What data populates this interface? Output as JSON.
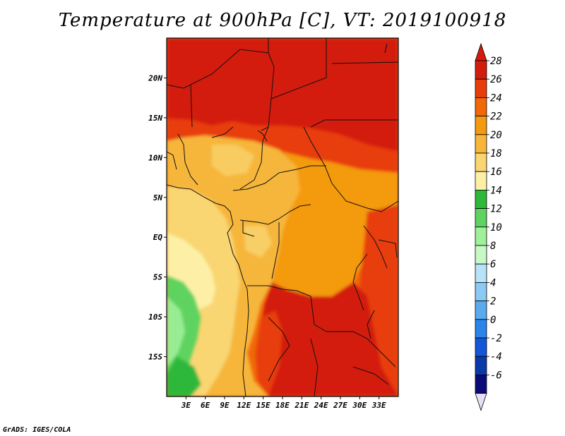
{
  "title": "Temperature at 900hPa [C], VT: 2019100918",
  "footer": "GrADS: IGES/COLA",
  "map": {
    "lon_range": [
      0,
      36
    ],
    "lat_range": [
      -20,
      25
    ],
    "lat_ticks": [
      {
        "value": 20,
        "label": "20N"
      },
      {
        "value": 15,
        "label": "15N"
      },
      {
        "value": 10,
        "label": "10N"
      },
      {
        "value": 5,
        "label": "5N"
      },
      {
        "value": 0,
        "label": "EQ"
      },
      {
        "value": -5,
        "label": "5S"
      },
      {
        "value": -10,
        "label": "10S"
      },
      {
        "value": -15,
        "label": "15S"
      }
    ],
    "lon_ticks": [
      {
        "value": 3,
        "label": "3E"
      },
      {
        "value": 6,
        "label": "6E"
      },
      {
        "value": 9,
        "label": "9E"
      },
      {
        "value": 12,
        "label": "12E"
      },
      {
        "value": 15,
        "label": "15E"
      },
      {
        "value": 18,
        "label": "18E"
      },
      {
        "value": 21,
        "label": "21E"
      },
      {
        "value": 24,
        "label": "24E"
      },
      {
        "value": 27,
        "label": "27E"
      },
      {
        "value": 30,
        "label": "30E"
      },
      {
        "value": 33,
        "label": "33E"
      }
    ]
  },
  "colorbar": {
    "labels": [
      "28",
      "26",
      "24",
      "22",
      "20",
      "18",
      "16",
      "14",
      "12",
      "10",
      "8",
      "6",
      "4",
      "2",
      "0",
      "-2",
      "-4",
      "-6"
    ],
    "colors": [
      "#d31c0c",
      "#e83c0a",
      "#f06808",
      "#f49a10",
      "#f6b63a",
      "#f9d672",
      "#fdf0a6",
      "#2fb83a",
      "#5fd35f",
      "#9ef09a",
      "#c8f8c6",
      "#b8e2f8",
      "#8ccaf4",
      "#5aaaf0",
      "#2a84ea",
      "#1456d8",
      "#0a3aa8",
      "#0a0a78"
    ],
    "over_color": "#d31c0c",
    "under_color": "#e6e0f6"
  }
}
